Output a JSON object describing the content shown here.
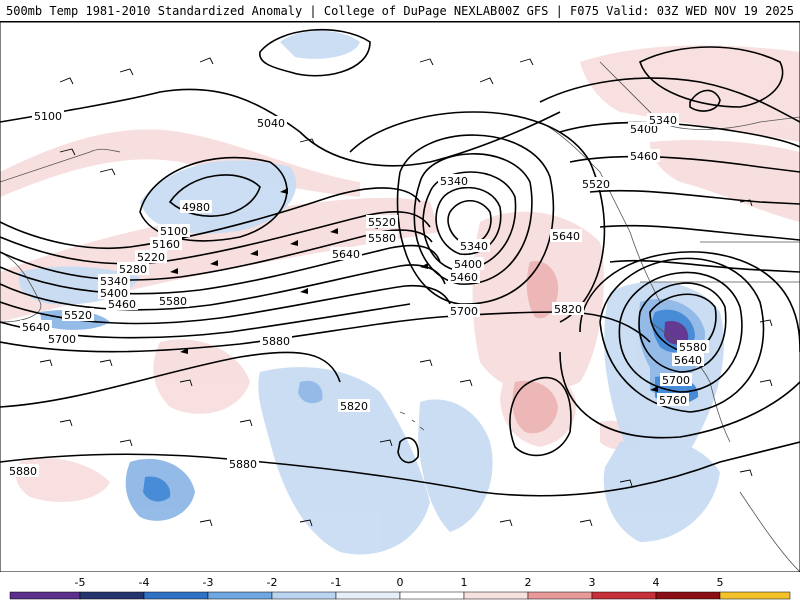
{
  "header": {
    "left_title": "500mb Temp 1981-2010 Standardized Anomaly | College of DuPage NEXLAB",
    "right_title": "00Z GFS | F075 Valid: 03Z WED NOV 19 2025"
  },
  "contour_labels": [
    {
      "id": "l5100-w",
      "text": "5100"
    },
    {
      "id": "l5040",
      "text": "5040"
    },
    {
      "id": "l4980",
      "text": "4980"
    },
    {
      "id": "l5100-c",
      "text": "5100"
    },
    {
      "id": "l5160",
      "text": "5160"
    },
    {
      "id": "l5220",
      "text": "5220"
    },
    {
      "id": "l5280",
      "text": "5280"
    },
    {
      "id": "l5340-w",
      "text": "5340"
    },
    {
      "id": "l5400-w",
      "text": "5400"
    },
    {
      "id": "l5460-w",
      "text": "5460"
    },
    {
      "id": "l5520-w",
      "text": "5520"
    },
    {
      "id": "l5640-w",
      "text": "5640"
    },
    {
      "id": "l5700-w",
      "text": "5700"
    },
    {
      "id": "l5580",
      "text": "5580"
    },
    {
      "id": "l5880-c",
      "text": "5880"
    },
    {
      "id": "l5340-c",
      "text": "5340"
    },
    {
      "id": "l5520-c",
      "text": "5520"
    },
    {
      "id": "l5580-c",
      "text": "5580"
    },
    {
      "id": "l5640-c",
      "text": "5640"
    },
    {
      "id": "l5340-lo",
      "text": "5340"
    },
    {
      "id": "l5400-c",
      "text": "5400"
    },
    {
      "id": "l5460-c",
      "text": "5460"
    },
    {
      "id": "l5700-c",
      "text": "5700"
    },
    {
      "id": "l5820-c",
      "text": "5820"
    },
    {
      "id": "l5820-e",
      "text": "5820"
    },
    {
      "id": "l5640-e",
      "text": "5640"
    },
    {
      "id": "l5520-e",
      "text": "5520"
    },
    {
      "id": "l5460-e",
      "text": "5460"
    },
    {
      "id": "l5400-e",
      "text": "5400"
    },
    {
      "id": "l5340-e",
      "text": "5340"
    },
    {
      "id": "l5580-lo",
      "text": "5580"
    },
    {
      "id": "l5640-lo",
      "text": "5640"
    },
    {
      "id": "l5700-lo",
      "text": "5700"
    },
    {
      "id": "l5760-lo",
      "text": "5760"
    },
    {
      "id": "l5880-s",
      "text": "5880"
    },
    {
      "id": "l5880-sw",
      "text": "5880"
    }
  ],
  "colorbar": {
    "ticks": [
      "-5",
      "-4",
      "-3",
      "-2",
      "-1",
      "0",
      "1",
      "2",
      "3",
      "4",
      "5"
    ],
    "colors": [
      "#5b2f8c",
      "#27356f",
      "#2f72c4",
      "#6fa7e0",
      "#b9d4f0",
      "#e6eef8",
      "#ffffff",
      "#f7e0e0",
      "#e89a9a",
      "#c6303a",
      "#8a0f14",
      "#f3c12a"
    ]
  },
  "colors": {
    "cold_light": "#c8dcf2",
    "cold_med": "#8fb8e6",
    "cold_strong": "#3f86d6",
    "cold_extreme": "#5b2f8c",
    "warm_light": "#f8dede",
    "warm_med": "#eeb4b4"
  }
}
